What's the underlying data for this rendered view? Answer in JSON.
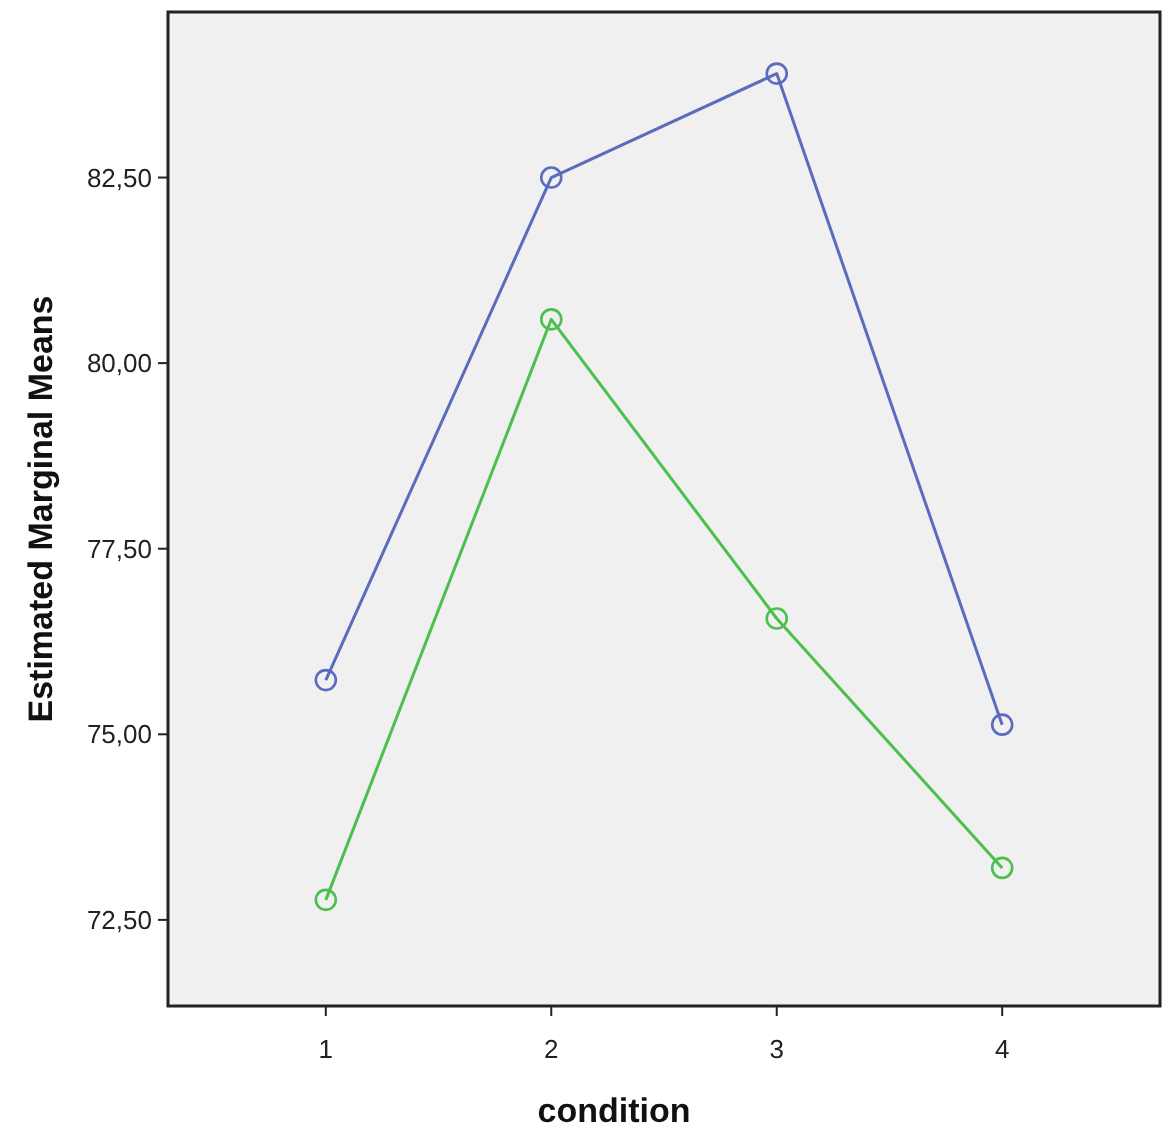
{
  "chart_data": {
    "type": "line",
    "xlabel": "condition",
    "ylabel": "Estimated Marginal Means",
    "categories": [
      "1",
      "2",
      "3",
      "4"
    ],
    "series": [
      {
        "color": "#5b6bbd",
        "values": [
          75.73,
          82.5,
          83.9,
          75.13
        ]
      },
      {
        "color": "#4cbf4c",
        "values": [
          72.77,
          80.59,
          76.56,
          73.2
        ]
      }
    ],
    "ylim": [
      71.34,
      84.73
    ],
    "yticks": [
      {
        "value": 72.5,
        "label": "72,50"
      },
      {
        "value": 75,
        "label": "75,00"
      },
      {
        "value": 77.5,
        "label": "77,50"
      },
      {
        "value": 80,
        "label": "80,00"
      },
      {
        "value": 82.5,
        "label": "82,50"
      }
    ],
    "marker": "circle",
    "line_style": "solid",
    "grid": false
  }
}
